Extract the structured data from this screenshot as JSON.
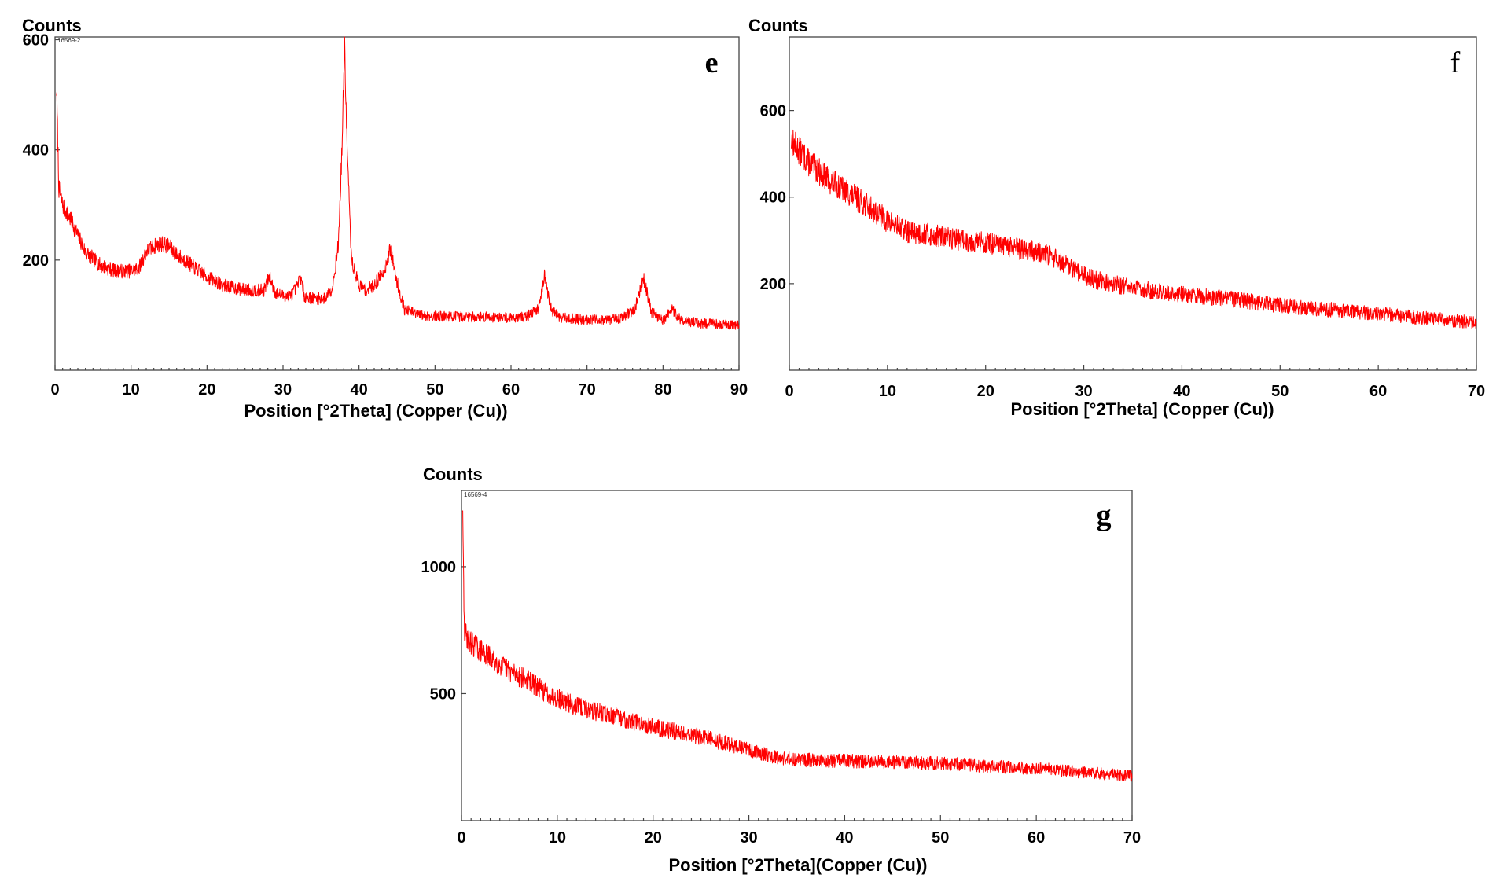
{
  "chart_data": [
    {
      "type": "line",
      "panel_letter": "e",
      "sample_label": "16569-2",
      "ylabel": "Counts",
      "xlabel": "Position [°2Theta] (Copper (Cu))",
      "xlim": [
        0,
        90
      ],
      "ylim": [
        0,
        605
      ],
      "x_ticks": [
        0,
        10,
        20,
        30,
        40,
        50,
        60,
        70,
        80,
        90
      ],
      "y_ticks": [
        200,
        400,
        600
      ],
      "color": "#ff0000",
      "series": [
        {
          "x": [
            0.2,
            0.5,
            1,
            2,
            3,
            4,
            6,
            8,
            10,
            11,
            12,
            13,
            14,
            15,
            16,
            18,
            20,
            22,
            24,
            26,
            27.5,
            28.2,
            29,
            30,
            31,
            31.8,
            32.3,
            32.8,
            34,
            35.5,
            36.5,
            37.3,
            37.8,
            38.1,
            38.4,
            39,
            40,
            41,
            42,
            43.3,
            44.1,
            45,
            46,
            48,
            50,
            55,
            60,
            62,
            63.5,
            64.4,
            65.3,
            66.5,
            70,
            74,
            76.3,
            77.4,
            78.5,
            80,
            81.2,
            82.5,
            85,
            90
          ],
          "y": [
            510,
            330,
            300,
            275,
            245,
            215,
            190,
            180,
            180,
            185,
            215,
            225,
            230,
            225,
            210,
            190,
            170,
            155,
            148,
            145,
            145,
            170,
            140,
            135,
            135,
            150,
            170,
            135,
            130,
            130,
            150,
            230,
            420,
            595,
            420,
            200,
            155,
            145,
            155,
            180,
            220,
            160,
            110,
            100,
            98,
            97,
            96,
            97,
            110,
            170,
            110,
            95,
            92,
            92,
            110,
            170,
            105,
            90,
            110,
            90,
            85,
            82
          ]
        }
      ]
    },
    {
      "type": "line",
      "panel_letter": "f",
      "sample_label": "",
      "ylabel": "Counts",
      "xlabel": "Position [°2Theta] (Copper (Cu))",
      "xlim": [
        0,
        70
      ],
      "ylim": [
        0,
        770
      ],
      "x_ticks": [
        0,
        10,
        20,
        30,
        40,
        50,
        60,
        70
      ],
      "y_ticks": [
        200,
        400,
        600
      ],
      "color": "#ff0000",
      "series": [
        {
          "x": [
            0.2,
            2,
            4,
            6,
            8,
            10,
            12,
            15,
            18,
            20,
            22,
            25,
            27,
            29,
            31,
            33,
            35,
            38,
            40,
            45,
            50,
            55,
            60,
            65,
            70
          ],
          "y": [
            530,
            480,
            440,
            410,
            380,
            345,
            320,
            310,
            300,
            295,
            285,
            275,
            260,
            230,
            210,
            200,
            190,
            180,
            175,
            165,
            150,
            140,
            130,
            120,
            110
          ]
        }
      ]
    },
    {
      "type": "line",
      "panel_letter": "g",
      "sample_label": "16569-4",
      "ylabel": "Counts",
      "xlabel": "Position [°2Theta](Copper (Cu))",
      "xlim": [
        0,
        70
      ],
      "ylim": [
        0,
        1300
      ],
      "x_ticks": [
        0,
        10,
        20,
        30,
        40,
        50,
        60,
        70
      ],
      "y_ticks": [
        500,
        1000
      ],
      "color": "#ff0000",
      "series": [
        {
          "x": [
            0.1,
            0.3,
            1,
            3,
            5,
            7,
            9,
            12,
            15,
            20,
            25,
            28,
            30,
            33,
            35,
            40,
            45,
            50,
            55,
            60,
            65,
            70
          ],
          "y": [
            1250,
            740,
            700,
            640,
            590,
            550,
            500,
            450,
            420,
            370,
            330,
            300,
            280,
            250,
            240,
            235,
            230,
            225,
            215,
            205,
            190,
            175
          ]
        }
      ]
    }
  ]
}
